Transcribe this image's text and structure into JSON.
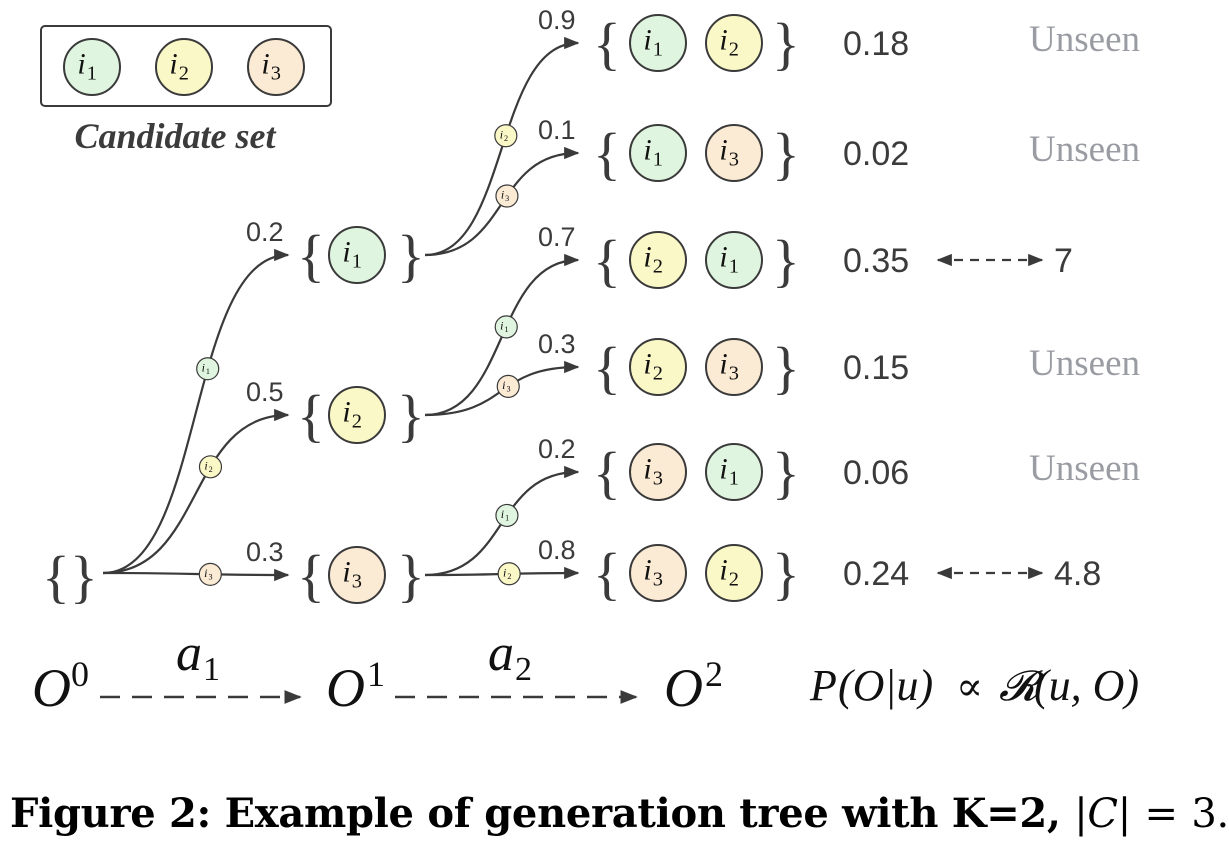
{
  "colors": {
    "i1": "#dff5df",
    "i2": "#fbf8c8",
    "i3": "#fbead4",
    "stroke": "#3a3a3a",
    "unseen": "#9a9ca3",
    "text": "#3b3b3b"
  },
  "legend": {
    "items": [
      {
        "id": "i1",
        "base": "i",
        "sub": "1"
      },
      {
        "id": "i2",
        "base": "i",
        "sub": "2"
      },
      {
        "id": "i3",
        "base": "i",
        "sub": "3"
      }
    ],
    "title": "Candidate set"
  },
  "root": {
    "open": "{",
    "close": "}"
  },
  "level1": [
    {
      "item": "i1",
      "prob": "0.2",
      "edge_item": "i1"
    },
    {
      "item": "i2",
      "prob": "0.5",
      "edge_item": "i2"
    },
    {
      "item": "i3",
      "prob": "0.3",
      "edge_item": "i3"
    }
  ],
  "level2": [
    {
      "parent": 0,
      "items": [
        "i1",
        "i2"
      ],
      "prob": "0.9",
      "edge_item": "i2",
      "score": "0.18",
      "status": "Unseen"
    },
    {
      "parent": 0,
      "items": [
        "i1",
        "i3"
      ],
      "prob": "0.1",
      "edge_item": "i3",
      "score": "0.02",
      "status": "Unseen"
    },
    {
      "parent": 1,
      "items": [
        "i2",
        "i1"
      ],
      "prob": "0.7",
      "edge_item": "i1",
      "score": "0.35",
      "reward": "7"
    },
    {
      "parent": 1,
      "items": [
        "i2",
        "i3"
      ],
      "prob": "0.3",
      "edge_item": "i3",
      "score": "0.15",
      "status": "Unseen"
    },
    {
      "parent": 2,
      "items": [
        "i3",
        "i1"
      ],
      "prob": "0.2",
      "edge_item": "i1",
      "score": "0.06",
      "status": "Unseen"
    },
    {
      "parent": 2,
      "items": [
        "i3",
        "i2"
      ],
      "prob": "0.8",
      "edge_item": "i2",
      "score": "0.24",
      "reward": "4.8"
    }
  ],
  "bottom_axis": {
    "stages": [
      {
        "base": "O",
        "sup": "0"
      },
      {
        "base": "O",
        "sup": "1"
      },
      {
        "base": "O",
        "sup": "2"
      }
    ],
    "actions": [
      {
        "base": "a",
        "sub": "1"
      },
      {
        "base": "a",
        "sub": "2"
      }
    ],
    "formula": {
      "lhs_p": "P",
      "lhs_args": "(O|u)",
      "propto": "∝",
      "rhs_r": "𝓡",
      "rhs_args": "(u, O)"
    }
  },
  "caption": {
    "prefix": "Figure 2: Example of generation tree with K=2,",
    "card_bar_open": "|",
    "card_var": "C",
    "card_bar_close": "|",
    "equals": "=",
    "card_value": "3."
  }
}
